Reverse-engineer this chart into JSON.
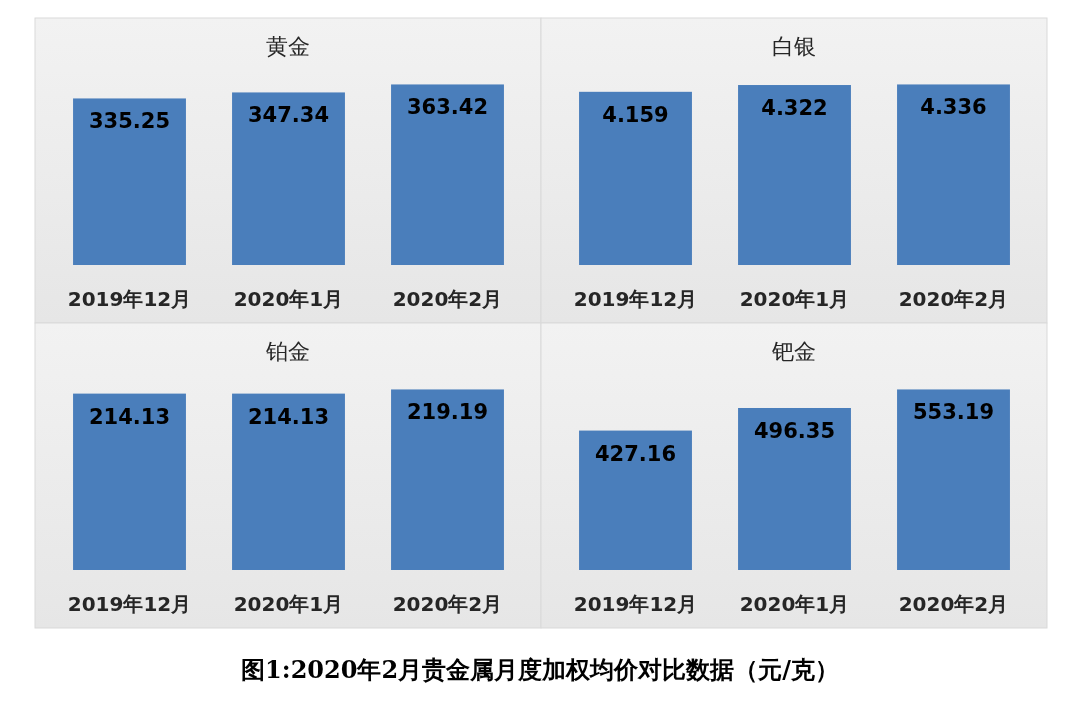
{
  "chart_data": [
    {
      "type": "bar",
      "title": "黄金",
      "categories": [
        "2019年12月",
        "2020年1月",
        "2020年2月"
      ],
      "values": [
        335.25,
        347.34,
        363.42
      ],
      "color": "#4a7ebb",
      "data_labels": true,
      "annotations": [
        "图1:2020年2月贵金属月度加权均价对比数据（元/克）"
      ]
    },
    {
      "type": "bar",
      "title": "白银",
      "categories": [
        "2019年12月",
        "2020年1月",
        "2020年2月"
      ],
      "values": [
        4.159,
        4.322,
        4.336
      ],
      "color": "#4a7ebb",
      "data_labels": true
    },
    {
      "type": "bar",
      "title": "铂金",
      "categories": [
        "2019年12月",
        "2020年1月",
        "2020年2月"
      ],
      "values": [
        214.13,
        214.13,
        219.19
      ],
      "color": "#4a7ebb",
      "data_labels": true
    },
    {
      "type": "bar",
      "title": "钯金",
      "categories": [
        "2019年12月",
        "2020年1月",
        "2020年2月"
      ],
      "values": [
        427.16,
        496.35,
        553.19
      ],
      "color": "#4a7ebb",
      "data_labels": true
    }
  ]
}
